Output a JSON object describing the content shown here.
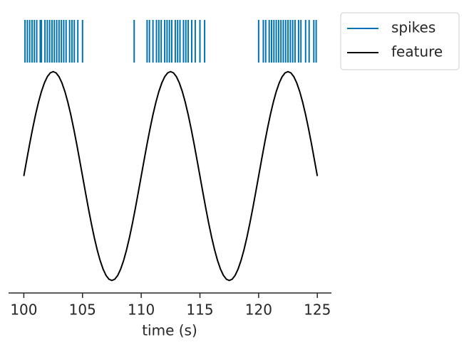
{
  "chart_data": {
    "type": "line",
    "xlabel": "time (s)",
    "xlim": [
      98.7,
      126.2
    ],
    "xticks": [
      100,
      105,
      110,
      115,
      120,
      125
    ],
    "ylim": [
      -1.12,
      1.55
    ],
    "legend": "outside upper right",
    "series": [
      {
        "name": "spikes",
        "color": "#0173b2",
        "style": "raster",
        "x": [
          100.1,
          100.3,
          100.5,
          100.7,
          100.9,
          101.1,
          101.4,
          101.5,
          101.8,
          102.0,
          102.2,
          102.4,
          102.6,
          102.8,
          103.0,
          103.2,
          103.4,
          103.6,
          103.9,
          104.1,
          104.3,
          104.6,
          105.0,
          109.4,
          110.5,
          110.7,
          111.0,
          111.3,
          111.5,
          111.7,
          112.0,
          112.2,
          112.4,
          112.6,
          112.9,
          113.1,
          113.3,
          113.6,
          113.8,
          114.0,
          114.3,
          114.6,
          115.0,
          115.4,
          120.0,
          120.4,
          120.6,
          120.9,
          121.1,
          121.3,
          121.5,
          121.7,
          121.9,
          122.1,
          122.3,
          122.5,
          122.7,
          122.9,
          123.1,
          123.4,
          123.6,
          124.0,
          124.3,
          124.7,
          124.9
        ]
      },
      {
        "name": "feature",
        "color": "#000000",
        "style": "line",
        "x": [
          100,
          100.25,
          100.5,
          100.75,
          101,
          101.25,
          101.5,
          101.75,
          102,
          102.25,
          102.5,
          102.75,
          103,
          103.25,
          103.5,
          103.75,
          104,
          104.25,
          104.5,
          104.75,
          105,
          105.25,
          105.5,
          105.75,
          106,
          106.25,
          106.5,
          106.75,
          107,
          107.25,
          107.5,
          107.75,
          108,
          108.25,
          108.5,
          108.75,
          109,
          109.25,
          109.5,
          109.75,
          110,
          110.25,
          110.5,
          110.75,
          111,
          111.25,
          111.5,
          111.75,
          112,
          112.25,
          112.5,
          112.75,
          113,
          113.25,
          113.5,
          113.75,
          114,
          114.25,
          114.5,
          114.75,
          115,
          115.25,
          115.5,
          115.75,
          116,
          116.25,
          116.5,
          116.75,
          117,
          117.25,
          117.5,
          117.75,
          118,
          118.25,
          118.5,
          118.75,
          119,
          119.25,
          119.5,
          119.75,
          120,
          120.25,
          120.5,
          120.75,
          121,
          121.25,
          121.5,
          121.75,
          122,
          122.25,
          122.5,
          122.75,
          123,
          123.25,
          123.5,
          123.75,
          124,
          124.25,
          124.5,
          124.75,
          125
        ],
        "values": [
          0,
          0.156,
          0.309,
          0.454,
          0.588,
          0.707,
          0.809,
          0.891,
          0.951,
          0.988,
          1,
          0.988,
          0.951,
          0.891,
          0.809,
          0.707,
          0.588,
          0.454,
          0.309,
          0.156,
          0,
          -0.156,
          -0.309,
          -0.454,
          -0.588,
          -0.707,
          -0.809,
          -0.891,
          -0.951,
          -0.988,
          -1,
          -0.988,
          -0.951,
          -0.891,
          -0.809,
          -0.707,
          -0.588,
          -0.454,
          -0.309,
          -0.156,
          0,
          0.156,
          0.309,
          0.454,
          0.588,
          0.707,
          0.809,
          0.891,
          0.951,
          0.988,
          1,
          0.988,
          0.951,
          0.891,
          0.809,
          0.707,
          0.588,
          0.454,
          0.309,
          0.156,
          0,
          -0.156,
          -0.309,
          -0.454,
          -0.588,
          -0.707,
          -0.809,
          -0.891,
          -0.951,
          -0.988,
          -1,
          -0.988,
          -0.951,
          -0.891,
          -0.809,
          -0.707,
          -0.588,
          -0.454,
          -0.309,
          -0.156,
          0,
          0.156,
          0.309,
          0.454,
          0.588,
          0.707,
          0.809,
          0.891,
          0.951,
          0.988,
          1,
          0.988,
          0.951,
          0.891,
          0.809,
          0.707,
          0.588,
          0.454,
          0.309,
          0.156,
          0
        ]
      }
    ]
  }
}
